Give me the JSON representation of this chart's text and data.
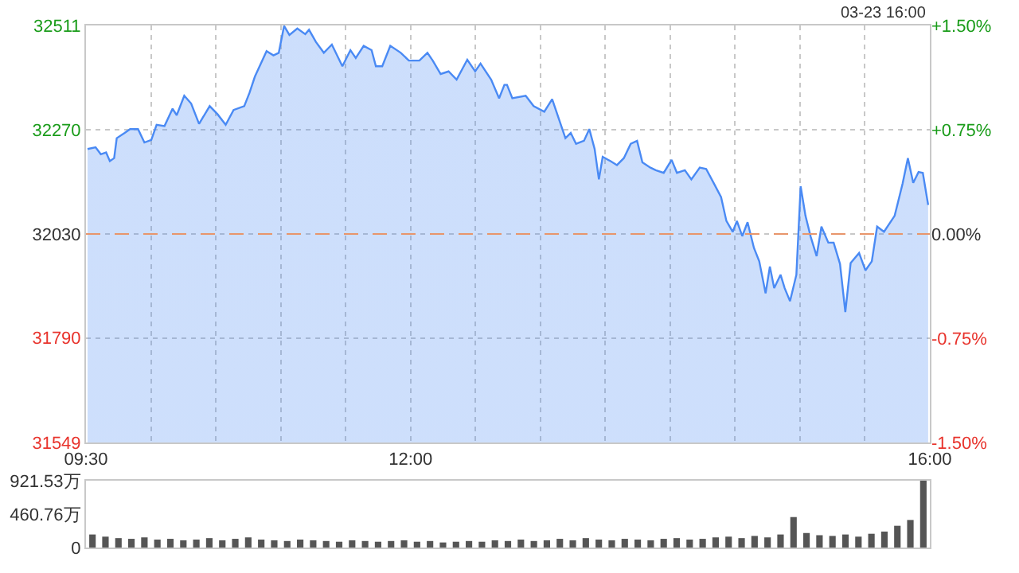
{
  "chart_data": [
    {
      "type": "area",
      "color": "#4a8af4",
      "annotations": [
        "03-23 16:00"
      ],
      "x": [
        9.512,
        9.574,
        9.614,
        9.655,
        9.684,
        9.717,
        9.737,
        9.798,
        9.84,
        9.901,
        9.95,
        10.003,
        10.044,
        10.105,
        10.167,
        10.199,
        10.257,
        10.31,
        10.371,
        10.453,
        10.514,
        10.576,
        10.637,
        10.719,
        10.76,
        10.801,
        10.891,
        10.944,
        10.985,
        11.026,
        11.067,
        11.128,
        11.189,
        11.218,
        11.271,
        11.332,
        11.394,
        11.475,
        11.537,
        11.578,
        11.639,
        11.7,
        11.733,
        11.782,
        11.844,
        11.925,
        11.987,
        12.068,
        12.13,
        12.171,
        12.232,
        12.293,
        12.355,
        12.437,
        12.498,
        12.539,
        12.621,
        12.682,
        12.723,
        12.743,
        12.784,
        12.887,
        12.948,
        13.03,
        13.091,
        13.193,
        13.234,
        13.275,
        13.336,
        13.377,
        13.418,
        13.451,
        13.48,
        13.541,
        13.59,
        13.643,
        13.696,
        13.745,
        13.786,
        13.848,
        13.889,
        13.95,
        14.011,
        14.052,
        14.113,
        14.163,
        14.228,
        14.277,
        14.338,
        14.392,
        14.433,
        14.482,
        14.514,
        14.555,
        14.596,
        14.645,
        14.686,
        14.735,
        14.768,
        14.801,
        14.85,
        14.882,
        14.923,
        14.972,
        15.005,
        15.042,
        15.083,
        15.128,
        15.165,
        15.218,
        15.259,
        15.308,
        15.349,
        15.39,
        15.455,
        15.504,
        15.553,
        15.594,
        15.647,
        15.729,
        15.79,
        15.831,
        15.872,
        15.913,
        15.946,
        15.987
      ],
      "values": [
        32226,
        32230,
        32214,
        32218,
        32198,
        32205,
        32251,
        32263,
        32272,
        32272,
        32241,
        32247,
        32282,
        32279,
        32319,
        32304,
        32349,
        32331,
        32284,
        32325,
        32306,
        32282,
        32316,
        32325,
        32356,
        32393,
        32452,
        32442,
        32448,
        32510,
        32489,
        32504,
        32491,
        32501,
        32473,
        32448,
        32467,
        32417,
        32454,
        32436,
        32464,
        32454,
        32417,
        32417,
        32464,
        32448,
        32430,
        32430,
        32448,
        32430,
        32399,
        32405,
        32386,
        32432,
        32405,
        32423,
        32386,
        32343,
        32374,
        32374,
        32343,
        32349,
        32325,
        32312,
        32341,
        32251,
        32263,
        32238,
        32245,
        32272,
        32226,
        32156,
        32208,
        32198,
        32189,
        32205,
        32238,
        32245,
        32195,
        32183,
        32177,
        32171,
        32201,
        32171,
        32177,
        32156,
        32183,
        32180,
        32146,
        32115,
        32060,
        32035,
        32060,
        32025,
        32057,
        31998,
        31967,
        31893,
        31955,
        31905,
        31936,
        31905,
        31875,
        31936,
        32140,
        32072,
        32023,
        31979,
        32047,
        32010,
        32010,
        31961,
        31850,
        31963,
        31986,
        31946,
        31967,
        32047,
        32035,
        32072,
        32146,
        32205,
        32148,
        32173,
        32171,
        32097
      ],
      "xlim": [
        9.5,
        16
      ],
      "xticks": [
        {
          "value": 9.5,
          "label": "09:30"
        },
        {
          "value": 10,
          "label": null
        },
        {
          "value": 10.5,
          "label": null
        },
        {
          "value": 11,
          "label": null
        },
        {
          "value": 11.5,
          "label": null
        },
        {
          "value": 12,
          "label": "12:00"
        },
        {
          "value": 12.5,
          "label": null
        },
        {
          "value": 13,
          "label": null
        },
        {
          "value": 13.5,
          "label": null
        },
        {
          "value": 14,
          "label": null
        },
        {
          "value": 14.5,
          "label": null
        },
        {
          "value": 15,
          "label": null
        },
        {
          "value": 15.5,
          "label": null
        },
        {
          "value": 16,
          "label": "16:00"
        }
      ],
      "ylim": [
        31549,
        32511
      ],
      "yticks": [
        31549,
        31790,
        32030,
        32270,
        32511
      ],
      "y2lim": [
        -1.5,
        1.5
      ],
      "y2ticks": [
        {
          "value": -1.5,
          "label": "-1.50%"
        },
        {
          "value": -0.75,
          "label": "-0.75%"
        },
        {
          "value": 0,
          "label": "0.00%"
        },
        {
          "value": 0.75,
          "label": "+0.75%"
        },
        {
          "value": 1.5,
          "label": "+1.50%"
        }
      ],
      "ref_lines": [
        {
          "axis": "y",
          "value": 32030,
          "color": "#e8956b",
          "line_style": "dashed"
        }
      ],
      "grid": true
    },
    {
      "type": "bar",
      "color": "#555555",
      "categories": [
        null,
        null,
        null,
        null,
        null,
        null,
        null,
        null,
        null,
        null,
        null,
        null,
        null,
        null,
        null,
        null,
        null,
        null,
        null,
        null,
        null,
        null,
        null,
        null,
        null,
        null,
        null,
        null,
        null,
        null,
        null,
        null,
        null,
        null,
        null,
        null,
        null,
        null,
        null,
        null,
        null,
        null,
        null,
        null,
        null,
        null,
        null,
        null,
        null,
        null,
        null,
        null,
        null,
        null,
        null,
        null,
        null,
        null,
        null,
        null,
        null,
        null,
        null,
        null,
        null
      ],
      "values": [
        180,
        150,
        130,
        120,
        140,
        110,
        120,
        100,
        110,
        130,
        100,
        120,
        140,
        110,
        100,
        90,
        110,
        100,
        90,
        80,
        100,
        90,
        80,
        90,
        100,
        80,
        90,
        70,
        80,
        90,
        80,
        100,
        90,
        110,
        90,
        100,
        120,
        100,
        130,
        110,
        100,
        120,
        110,
        100,
        120,
        130,
        110,
        120,
        140,
        150,
        130,
        160,
        140,
        180,
        420,
        200,
        170,
        160,
        180,
        150,
        190,
        220,
        300,
        380,
        921.53
      ],
      "ylim": [
        0,
        921.53
      ],
      "yticks": [
        0,
        {
          "value": 460.76,
          "label": "460.76万"
        },
        {
          "value": 921.53,
          "label": "921.53万"
        }
      ],
      "tick_labels": "y",
      "grid": false
    }
  ]
}
